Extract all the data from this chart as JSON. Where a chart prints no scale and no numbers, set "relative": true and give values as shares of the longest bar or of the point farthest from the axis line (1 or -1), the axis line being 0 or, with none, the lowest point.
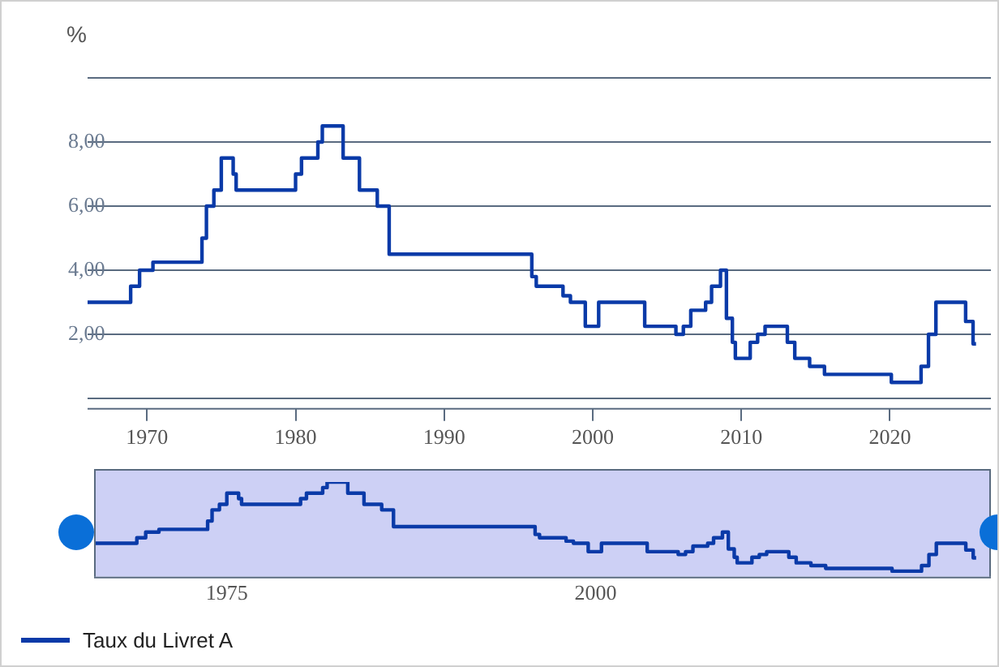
{
  "chart_data": [
    {
      "type": "step",
      "ylabel": "%",
      "x": [
        1966,
        1968.9,
        1969.5,
        1970.4,
        1973.7,
        1974.0,
        1974.5,
        1975.0,
        1975.8,
        1976.0,
        1980.0,
        1980.4,
        1981.5,
        1981.8,
        1983.2,
        1984.3,
        1985.5,
        1986.3,
        1995.9,
        1996.2,
        1998.0,
        1998.5,
        1999.5,
        2000.4,
        2003.5,
        2005.6,
        2006.1,
        2006.6,
        2007.6,
        2008.0,
        2008.6,
        2009.0,
        2009.4,
        2009.6,
        2010.6,
        2011.1,
        2011.6,
        2013.1,
        2013.6,
        2014.6,
        2015.6,
        2020.1,
        2022.1,
        2022.6,
        2023.1,
        2025.1,
        2025.6,
        2025.8
      ],
      "series": [
        {
          "name": "Taux du Livret A",
          "color": "#0a3aa8",
          "values": [
            3,
            3.5,
            4,
            4.25,
            5,
            6,
            6.5,
            7.5,
            7,
            6.5,
            7,
            7.5,
            8,
            8.5,
            7.5,
            6.5,
            6,
            4.5,
            3.8,
            3.5,
            3.2,
            3,
            2.25,
            3,
            2.25,
            2,
            2.25,
            2.75,
            3,
            3.5,
            4,
            2.5,
            1.75,
            1.25,
            1.75,
            2,
            2.25,
            1.75,
            1.25,
            1,
            0.75,
            0.5,
            1,
            2,
            3,
            2.4,
            1.7,
            1.7
          ]
        }
      ],
      "xlim": [
        1966,
        2026.8
      ],
      "xticks": [
        1970,
        1980,
        1990,
        2000,
        2010,
        2020
      ],
      "ylim": [
        -0.3,
        10
      ],
      "yticks": [
        {
          "value": 0,
          "label": null
        },
        {
          "value": 2,
          "label": "2,00"
        },
        {
          "value": 4,
          "label": "4,00"
        },
        {
          "value": 6,
          "label": "6,00"
        },
        {
          "value": 8,
          "label": "8,00"
        },
        {
          "value": 10,
          "label": null
        }
      ],
      "grid": "y",
      "legend": "bottom left"
    },
    {
      "type": "step",
      "x": [
        1966,
        1968.9,
        1969.5,
        1970.4,
        1973.7,
        1974.0,
        1974.5,
        1975.0,
        1975.8,
        1976.0,
        1980.0,
        1980.4,
        1981.5,
        1981.8,
        1983.2,
        1984.3,
        1985.5,
        1986.3,
        1995.9,
        1996.2,
        1998.0,
        1998.5,
        1999.5,
        2000.4,
        2003.5,
        2005.6,
        2006.1,
        2006.6,
        2007.6,
        2008.0,
        2008.6,
        2009.0,
        2009.4,
        2009.6,
        2010.6,
        2011.1,
        2011.6,
        2013.1,
        2013.6,
        2014.6,
        2015.6,
        2020.1,
        2022.1,
        2022.6,
        2023.1,
        2025.1,
        2025.6,
        2025.8
      ],
      "series": [
        {
          "color": "#0a3aa8",
          "values": [
            0.353,
            0.412,
            0.471,
            0.5,
            0.588,
            0.706,
            0.765,
            0.882,
            0.824,
            0.765,
            0.824,
            0.882,
            0.941,
            1,
            0.882,
            0.765,
            0.706,
            0.529,
            0.447,
            0.412,
            0.376,
            0.353,
            0.265,
            0.353,
            0.265,
            0.235,
            0.265,
            0.324,
            0.353,
            0.412,
            0.471,
            0.294,
            0.206,
            0.147,
            0.206,
            0.235,
            0.265,
            0.206,
            0.147,
            0.118,
            0.088,
            0.059,
            0.118,
            0.235,
            0.353,
            0.282,
            0.2,
            0.2
          ]
        }
      ],
      "relative": true,
      "xlim": [
        1966,
        2026.8
      ],
      "xticks": [
        1975,
        2000
      ],
      "tick_labels": "x",
      "bands": [
        {
          "axis": "x",
          "from": 1966,
          "to": 2026.8,
          "color": "#cdd0f5"
        }
      ]
    }
  ]
}
